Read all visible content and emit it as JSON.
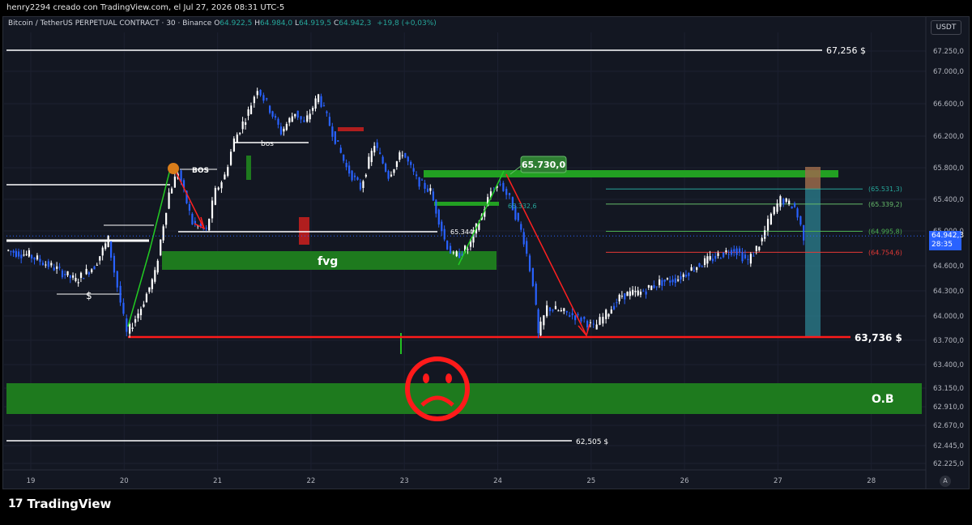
{
  "header": {
    "attribution": "henry2294 creado con TradingView.com, el Jul 27, 2026 08:31 UTC-5"
  },
  "symbol": {
    "name": "Bitcoin / TetherUS PERPETUAL CONTRACT · 30 · Binance",
    "o_label": "O",
    "o_value": "64.922,5",
    "h_label": "H",
    "h_value": "64.984,0",
    "l_label": "L",
    "l_value": "64.919,5",
    "c_label": "C",
    "c_value": "64.942,3",
    "change": "+19,8 (+0,03%)"
  },
  "currency": "USDT",
  "price_tag": {
    "price": "64.942,3",
    "countdown": "28:35"
  },
  "auto_button": "A",
  "brand": {
    "name": "TradingView",
    "mark": "17"
  },
  "colors": {
    "background": "#131722",
    "candle_up": "#ffffff",
    "candle_down": "#2962ff",
    "green_zone": "#1e7a1e",
    "red_line": "#ff1a1a",
    "fib": "#26a69a"
  },
  "chart_data": {
    "type": "candlestick",
    "symbol": "BTCUSDT.P",
    "timeframe": "30",
    "x_ticks": [
      "19",
      "20",
      "21",
      "22",
      "23",
      "24",
      "25",
      "26",
      "27",
      "28"
    ],
    "y_ticks": [
      "67.250,0",
      "67.000,0",
      "66.600,0",
      "66.200,0",
      "65.800,0",
      "65.400,0",
      "65.000,0",
      "64.600,0",
      "64.300,0",
      "64.000,0",
      "63.700,0",
      "63.400,0",
      "63.150,0",
      "62.910,0",
      "62.670,0",
      "62.445,0",
      "62.225,0"
    ],
    "price_path": [
      [
        18.75,
        64780
      ],
      [
        19.0,
        64720
      ],
      [
        19.3,
        64560
      ],
      [
        19.5,
        64420
      ],
      [
        19.7,
        64600
      ],
      [
        19.85,
        64900
      ],
      [
        19.95,
        64350
      ],
      [
        20.05,
        63780
      ],
      [
        20.2,
        64100
      ],
      [
        20.35,
        64500
      ],
      [
        20.5,
        65480
      ],
      [
        20.6,
        65750
      ],
      [
        20.75,
        65100
      ],
      [
        20.9,
        65000
      ],
      [
        21.0,
        65500
      ],
      [
        21.1,
        65700
      ],
      [
        21.2,
        66150
      ],
      [
        21.35,
        66500
      ],
      [
        21.45,
        66800
      ],
      [
        21.55,
        66600
      ],
      [
        21.7,
        66250
      ],
      [
        21.85,
        66500
      ],
      [
        21.95,
        66350
      ],
      [
        22.1,
        66700
      ],
      [
        22.25,
        66250
      ],
      [
        22.4,
        65800
      ],
      [
        22.55,
        65550
      ],
      [
        22.7,
        66100
      ],
      [
        22.85,
        65700
      ],
      [
        23.0,
        66000
      ],
      [
        23.15,
        65650
      ],
      [
        23.3,
        65500
      ],
      [
        23.45,
        64900
      ],
      [
        23.55,
        64700
      ],
      [
        23.7,
        64800
      ],
      [
        23.85,
        65200
      ],
      [
        23.95,
        65500
      ],
      [
        24.05,
        65600
      ],
      [
        24.15,
        65400
      ],
      [
        24.3,
        64900
      ],
      [
        24.4,
        64400
      ],
      [
        24.45,
        63760
      ],
      [
        24.55,
        64100
      ],
      [
        24.7,
        64050
      ],
      [
        24.85,
        64000
      ],
      [
        24.95,
        63950
      ],
      [
        25.05,
        63850
      ],
      [
        25.15,
        63980
      ],
      [
        25.35,
        64250
      ],
      [
        25.55,
        64280
      ],
      [
        25.75,
        64400
      ],
      [
        25.95,
        64450
      ],
      [
        26.15,
        64600
      ],
      [
        26.35,
        64700
      ],
      [
        26.55,
        64800
      ],
      [
        26.7,
        64650
      ],
      [
        26.85,
        64900
      ],
      [
        26.95,
        65200
      ],
      [
        27.05,
        65400
      ],
      [
        27.2,
        65300
      ],
      [
        27.3,
        64940
      ]
    ],
    "horizontal_levels": [
      {
        "price": 67256,
        "label": "67,256 $"
      },
      {
        "price": 63736,
        "label": "63,736 $"
      },
      {
        "price": 62505,
        "label": "62,505 $"
      }
    ],
    "fib_levels": [
      {
        "price": 65531.3,
        "label": "(65.531,3)"
      },
      {
        "price": 65339.2,
        "label": "(65.339,2)"
      },
      {
        "price": 64995.8,
        "label": "(64.995,8)"
      },
      {
        "price": 64754.6,
        "label": "(64.754,6)"
      }
    ],
    "annotations": {
      "bos": "BOS",
      "bos_small": "bos",
      "fvg": "fvg",
      "ob": "O.B",
      "liquidity": "$",
      "high_callout": "65.730,0",
      "level_small": "65.344",
      "level_small2": "65.332,6"
    }
  }
}
